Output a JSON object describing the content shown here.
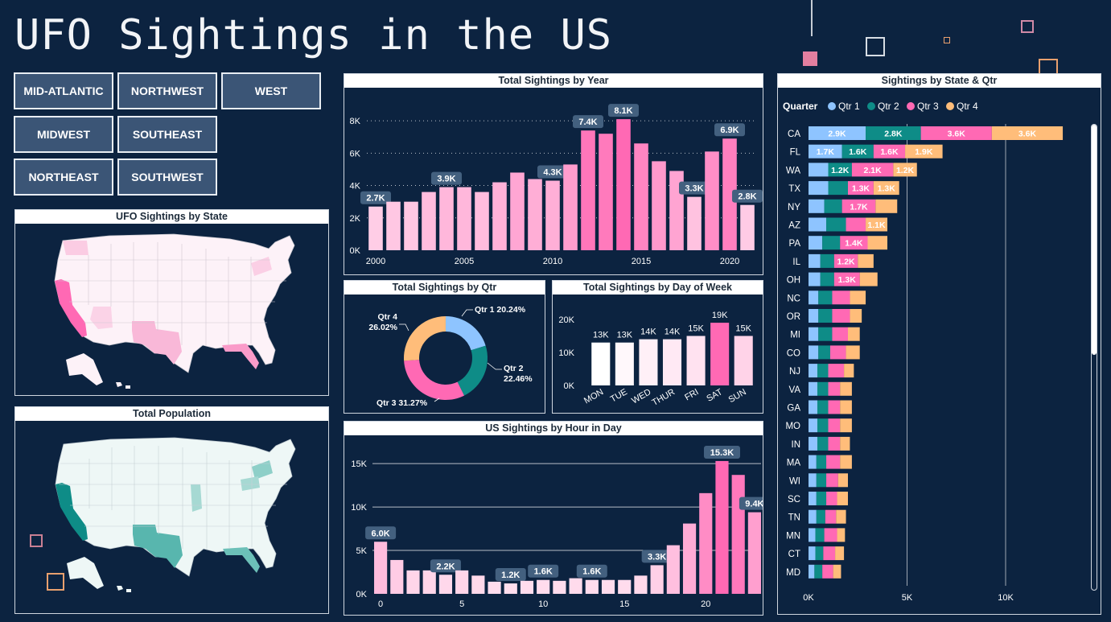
{
  "dashboard": {
    "title": "UFO Sightings in the US",
    "regions": [
      "MID-ATLANTIC",
      "NORTHWEST",
      "WEST",
      "MIDWEST",
      "SOUTHEAST",
      "NORTHEAST",
      "SOUTHWEST"
    ]
  },
  "colors": {
    "background": "#0c2340",
    "pink_dark": "#ff69b4",
    "pink_light": "#ffe6f2",
    "teal": "#0e8c87",
    "qtr1": "#8ec4ff",
    "qtr2": "#0e8c87",
    "qtr3": "#ff69b4",
    "qtr4": "#ffbd7a",
    "button": "#3b5576"
  },
  "maps": {
    "state_map_title": "UFO Sightings by State",
    "population_map_title": "Total Population"
  },
  "chart_data": [
    {
      "id": "year",
      "type": "bar",
      "title": "Total Sightings by Year",
      "x": [
        2000,
        2001,
        2002,
        2003,
        2004,
        2005,
        2006,
        2007,
        2008,
        2009,
        2010,
        2011,
        2012,
        2013,
        2014,
        2015,
        2016,
        2017,
        2018,
        2019,
        2020,
        2021
      ],
      "values": [
        2700,
        3000,
        3000,
        3600,
        3900,
        3900,
        3600,
        4200,
        4800,
        4400,
        4300,
        5300,
        7400,
        7200,
        8100,
        6600,
        5500,
        4900,
        3300,
        6100,
        6900,
        2800
      ],
      "data_labels": {
        "2000": "2.7K",
        "2004": "3.9K",
        "2010": "4.3K",
        "2012": "7.4K",
        "2014": "8.1K",
        "2018": "3.3K",
        "2020": "6.9K",
        "2021": "2.8K"
      },
      "x_ticks": [
        2000,
        2005,
        2010,
        2015,
        2020
      ],
      "y_ticks": [
        "0K",
        "2K",
        "4K",
        "6K",
        "8K"
      ],
      "ylim": [
        0,
        9000
      ],
      "grid": true
    },
    {
      "id": "qtr",
      "type": "pie",
      "title": "Total Sightings by Qtr",
      "slices": [
        {
          "name": "Qtr 1",
          "percent": 20.24,
          "label": "Qtr 1 20.24%"
        },
        {
          "name": "Qtr 2",
          "percent": 22.46,
          "label": "Qtr 2 22.46%"
        },
        {
          "name": "Qtr 3",
          "percent": 31.27,
          "label": "Qtr 3 31.27%"
        },
        {
          "name": "Qtr 4",
          "percent": 26.02,
          "label": "Qtr 4 26.02%"
        }
      ]
    },
    {
      "id": "dow",
      "type": "bar",
      "title": "Total Sightings by Day of Week",
      "categories": [
        "MON",
        "TUE",
        "WED",
        "THUR",
        "FRI",
        "SAT",
        "SUN"
      ],
      "values": [
        13000,
        13000,
        14000,
        14000,
        15000,
        19000,
        15000
      ],
      "data_labels": [
        "13K",
        "13K",
        "14K",
        "14K",
        "15K",
        "19K",
        "15K"
      ],
      "y_ticks": [
        "0K",
        "10K",
        "20K"
      ],
      "ylim": [
        0,
        20000
      ]
    },
    {
      "id": "hour",
      "type": "bar",
      "title": "US Sightings by Hour in Day",
      "x": [
        0,
        1,
        2,
        3,
        4,
        5,
        6,
        7,
        8,
        9,
        10,
        11,
        12,
        13,
        14,
        15,
        16,
        17,
        18,
        19,
        20,
        21,
        22,
        23
      ],
      "values": [
        6000,
        3900,
        2700,
        2700,
        2200,
        2700,
        2100,
        1400,
        1200,
        1500,
        1600,
        1500,
        1800,
        1600,
        1600,
        1600,
        2100,
        3300,
        5600,
        8100,
        11600,
        15300,
        13700,
        9400
      ],
      "data_labels": {
        "0": "6.0K",
        "4": "2.2K",
        "8": "1.2K",
        "10": "1.6K",
        "13": "1.6K",
        "17": "3.3K",
        "21": "15.3K",
        "23": "9.4K"
      },
      "x_ticks": [
        0,
        5,
        10,
        15,
        20
      ],
      "y_ticks": [
        "0K",
        "5K",
        "10K",
        "15K"
      ],
      "ylim": [
        0,
        16500
      ],
      "grid": true
    },
    {
      "id": "state",
      "type": "bar",
      "orientation": "horizontal",
      "stacked": true,
      "title": "Sightings by State & Qtr",
      "legend_title": "Quarter",
      "legend_position": "top-left",
      "categories": [
        "CA",
        "FL",
        "WA",
        "TX",
        "NY",
        "AZ",
        "PA",
        "IL",
        "OH",
        "NC",
        "OR",
        "MI",
        "CO",
        "NJ",
        "VA",
        "GA",
        "MO",
        "IN",
        "MA",
        "WI",
        "SC",
        "TN",
        "MN",
        "CT",
        "MD"
      ],
      "series": [
        {
          "name": "Qtr 1",
          "values": [
            2900,
            1700,
            1000,
            1000,
            800,
            900,
            700,
            600,
            600,
            500,
            500,
            500,
            500,
            450,
            450,
            450,
            450,
            450,
            400,
            400,
            400,
            400,
            350,
            350,
            300
          ],
          "labels": [
            "2.9K",
            "1.7K",
            "",
            "",
            "",
            "",
            "",
            "",
            "",
            "",
            "",
            "",
            "",
            "",
            "",
            "",
            "",
            "",
            "",
            "",
            "",
            "",
            "",
            "",
            ""
          ]
        },
        {
          "name": "Qtr 2",
          "values": [
            2800,
            1600,
            1200,
            1000,
            900,
            1000,
            900,
            700,
            700,
            700,
            700,
            700,
            600,
            550,
            550,
            550,
            550,
            550,
            500,
            500,
            500,
            450,
            450,
            400,
            400
          ],
          "labels": [
            "2.8K",
            "1.6K",
            "1.2K",
            "",
            "",
            "",
            "",
            "",
            "",
            "",
            "",
            "",
            "",
            "",
            "",
            "",
            "",
            "",
            "",
            "",
            "",
            "",
            "",
            "",
            ""
          ]
        },
        {
          "name": "Qtr 3",
          "values": [
            3600,
            1600,
            2100,
            1300,
            1700,
            1000,
            1400,
            1200,
            1300,
            900,
            900,
            800,
            800,
            800,
            600,
            600,
            600,
            600,
            700,
            600,
            550,
            550,
            650,
            600,
            550
          ],
          "labels": [
            "3.6K",
            "1.6K",
            "2.1K",
            "1.3K",
            "1.7K",
            "",
            "1.4K",
            "1.2K",
            "1.3K",
            "",
            "",
            "",
            "",
            "",
            "",
            "",
            "",
            "",
            "",
            "",
            "",
            "",
            "",
            "",
            ""
          ]
        },
        {
          "name": "Qtr 4",
          "values": [
            3600,
            1900,
            1200,
            1300,
            1100,
            1100,
            1000,
            800,
            900,
            800,
            600,
            600,
            700,
            500,
            600,
            600,
            600,
            500,
            600,
            500,
            550,
            500,
            400,
            450,
            400
          ],
          "labels": [
            "3.6K",
            "1.9K",
            "1.2K",
            "1.3K",
            "",
            "1.1K",
            "",
            "",
            "",
            "",
            "",
            "",
            "",
            "",
            "",
            "",
            "",
            "",
            "",
            "",
            "",
            "",
            "",
            "",
            ""
          ]
        }
      ],
      "x_ticks": [
        "0K",
        "5K",
        "10K"
      ],
      "xlim": [
        0,
        14000
      ]
    }
  ]
}
